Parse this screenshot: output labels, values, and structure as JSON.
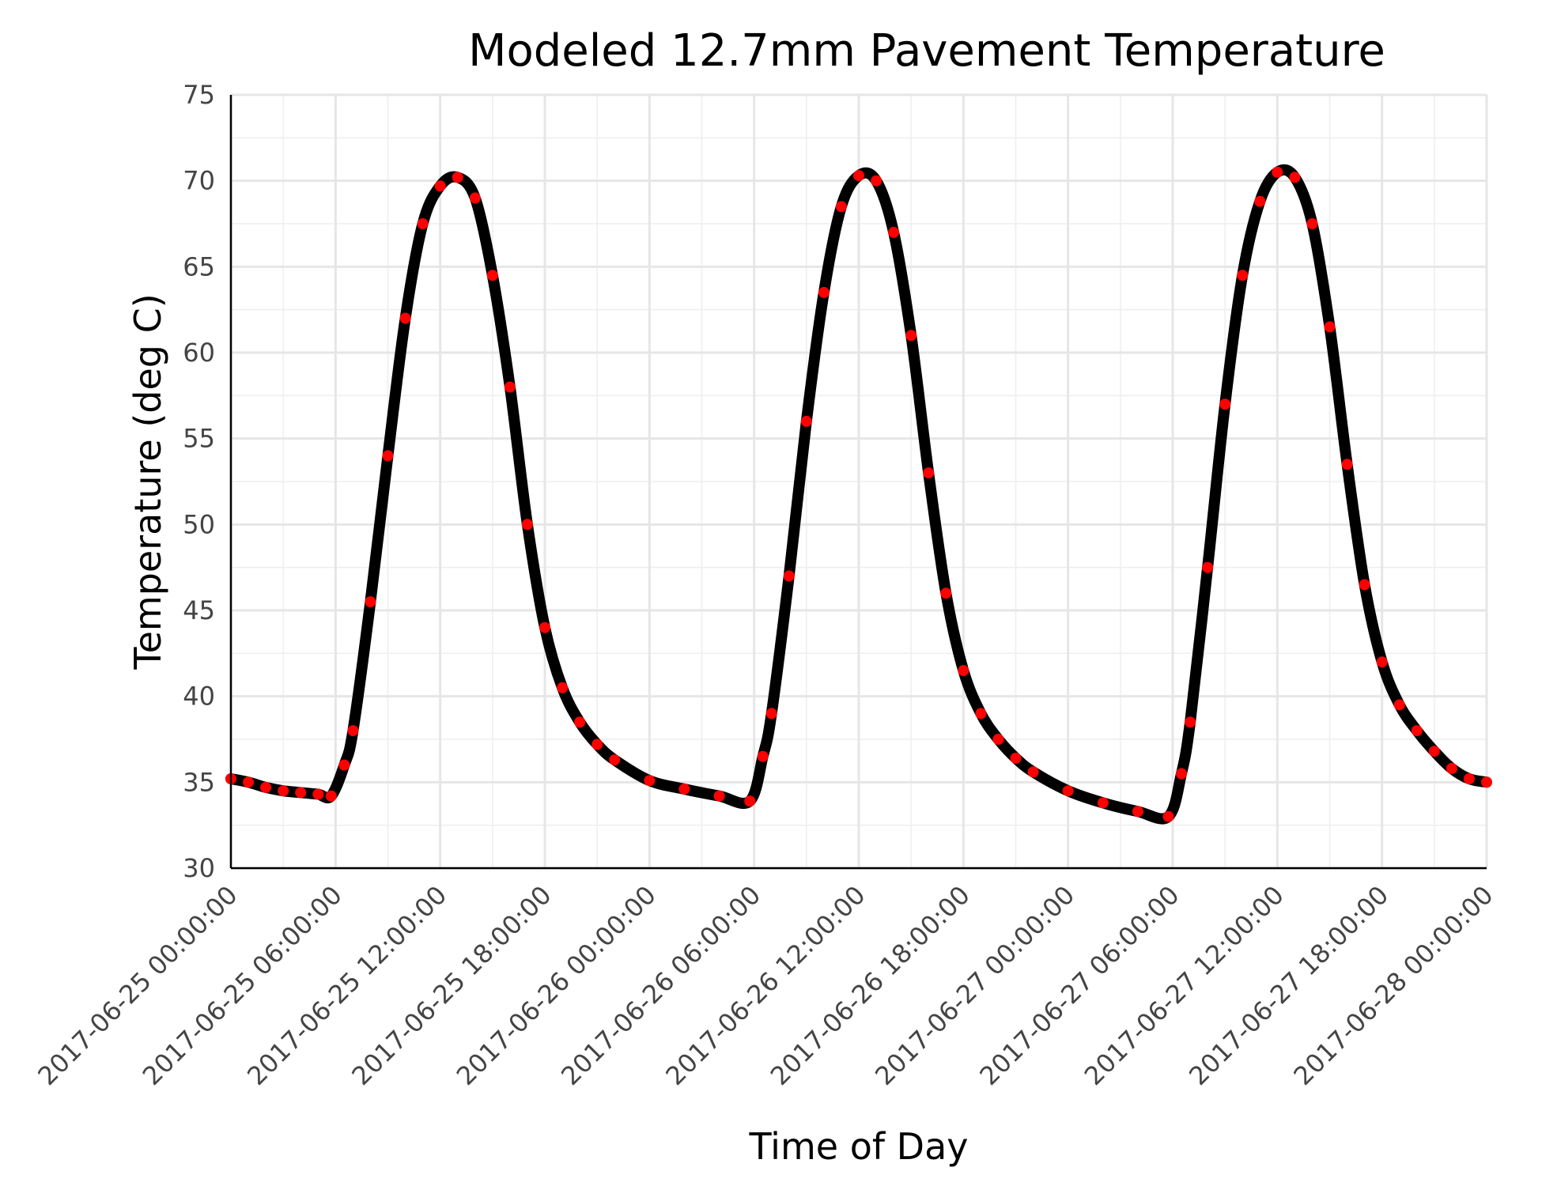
{
  "chart_data": {
    "type": "line",
    "title": "Modeled 12.7mm Pavement Temperature",
    "xlabel": "Time of Day",
    "ylabel": "Temperature (deg C)",
    "xlim": [
      "2017-06-25 00:00:00",
      "2017-06-28 00:00:00"
    ],
    "ylim": [
      30,
      75
    ],
    "yticks": [
      30,
      35,
      40,
      45,
      50,
      55,
      60,
      65,
      70,
      75
    ],
    "xticks": [
      "2017-06-25 00:00:00",
      "2017-06-25 06:00:00",
      "2017-06-25 12:00:00",
      "2017-06-25 18:00:00",
      "2017-06-26 00:00:00",
      "2017-06-26 06:00:00",
      "2017-06-26 12:00:00",
      "2017-06-26 18:00:00",
      "2017-06-27 00:00:00",
      "2017-06-27 06:00:00",
      "2017-06-27 12:00:00",
      "2017-06-27 18:00:00",
      "2017-06-28 00:00:00"
    ],
    "grid": true,
    "legend": false,
    "series": [
      {
        "style": "line",
        "color": "#000000",
        "x": [
          "2017-06-25 00:00:00",
          "2017-06-25 01:00:00",
          "2017-06-25 02:00:00",
          "2017-06-25 03:00:00",
          "2017-06-25 04:00:00",
          "2017-06-25 05:00:00",
          "2017-06-25 05:45:00",
          "2017-06-25 06:30:00",
          "2017-06-25 07:00:00",
          "2017-06-25 08:00:00",
          "2017-06-25 09:00:00",
          "2017-06-25 10:00:00",
          "2017-06-25 11:00:00",
          "2017-06-25 12:00:00",
          "2017-06-25 13:00:00",
          "2017-06-25 14:00:00",
          "2017-06-25 15:00:00",
          "2017-06-25 16:00:00",
          "2017-06-25 17:00:00",
          "2017-06-25 18:00:00",
          "2017-06-25 19:00:00",
          "2017-06-25 20:00:00",
          "2017-06-25 21:00:00",
          "2017-06-25 22:00:00",
          "2017-06-26 00:00:00",
          "2017-06-26 02:00:00",
          "2017-06-26 04:00:00",
          "2017-06-26 05:45:00",
          "2017-06-26 06:30:00",
          "2017-06-26 07:00:00",
          "2017-06-26 08:00:00",
          "2017-06-26 09:00:00",
          "2017-06-26 10:00:00",
          "2017-06-26 11:00:00",
          "2017-06-26 12:00:00",
          "2017-06-26 13:00:00",
          "2017-06-26 14:00:00",
          "2017-06-26 15:00:00",
          "2017-06-26 16:00:00",
          "2017-06-26 17:00:00",
          "2017-06-26 18:00:00",
          "2017-06-26 19:00:00",
          "2017-06-26 20:00:00",
          "2017-06-26 21:00:00",
          "2017-06-26 22:00:00",
          "2017-06-27 00:00:00",
          "2017-06-27 02:00:00",
          "2017-06-27 04:00:00",
          "2017-06-27 05:45:00",
          "2017-06-27 06:30:00",
          "2017-06-27 07:00:00",
          "2017-06-27 08:00:00",
          "2017-06-27 09:00:00",
          "2017-06-27 10:00:00",
          "2017-06-27 11:00:00",
          "2017-06-27 12:00:00",
          "2017-06-27 13:00:00",
          "2017-06-27 14:00:00",
          "2017-06-27 15:00:00",
          "2017-06-27 16:00:00",
          "2017-06-27 17:00:00",
          "2017-06-27 18:00:00",
          "2017-06-27 19:00:00",
          "2017-06-27 20:00:00",
          "2017-06-27 21:00:00",
          "2017-06-27 22:00:00",
          "2017-06-27 23:00:00",
          "2017-06-28 00:00:00"
        ],
        "y": [
          35.2,
          35.0,
          34.7,
          34.5,
          34.4,
          34.3,
          34.2,
          36.0,
          38.0,
          45.5,
          54.0,
          62.0,
          67.5,
          69.7,
          70.2,
          69.0,
          64.5,
          58.0,
          50.0,
          44.0,
          40.5,
          38.5,
          37.2,
          36.3,
          35.1,
          34.6,
          34.2,
          33.9,
          36.5,
          39.0,
          47.0,
          56.0,
          63.5,
          68.5,
          70.3,
          70.0,
          67.0,
          61.0,
          53.0,
          46.0,
          41.5,
          39.0,
          37.5,
          36.4,
          35.6,
          34.5,
          33.8,
          33.3,
          33.0,
          35.5,
          38.5,
          47.5,
          57.0,
          64.5,
          68.8,
          70.5,
          70.2,
          67.5,
          61.5,
          53.5,
          46.5,
          42.0,
          39.5,
          38.0,
          36.8,
          35.8,
          35.2,
          35.0
        ]
      },
      {
        "style": "markers",
        "color": "#ff0000",
        "x": [
          "2017-06-25 00:00:00",
          "2017-06-25 01:00:00",
          "2017-06-25 02:00:00",
          "2017-06-25 03:00:00",
          "2017-06-25 04:00:00",
          "2017-06-25 05:00:00",
          "2017-06-25 05:45:00",
          "2017-06-25 06:30:00",
          "2017-06-25 07:00:00",
          "2017-06-25 08:00:00",
          "2017-06-25 09:00:00",
          "2017-06-25 10:00:00",
          "2017-06-25 11:00:00",
          "2017-06-25 12:00:00",
          "2017-06-25 13:00:00",
          "2017-06-25 14:00:00",
          "2017-06-25 15:00:00",
          "2017-06-25 16:00:00",
          "2017-06-25 17:00:00",
          "2017-06-25 18:00:00",
          "2017-06-25 19:00:00",
          "2017-06-25 20:00:00",
          "2017-06-25 21:00:00",
          "2017-06-25 22:00:00",
          "2017-06-26 00:00:00",
          "2017-06-26 02:00:00",
          "2017-06-26 04:00:00",
          "2017-06-26 05:45:00",
          "2017-06-26 06:30:00",
          "2017-06-26 07:00:00",
          "2017-06-26 08:00:00",
          "2017-06-26 09:00:00",
          "2017-06-26 10:00:00",
          "2017-06-26 11:00:00",
          "2017-06-26 12:00:00",
          "2017-06-26 13:00:00",
          "2017-06-26 14:00:00",
          "2017-06-26 15:00:00",
          "2017-06-26 16:00:00",
          "2017-06-26 17:00:00",
          "2017-06-26 18:00:00",
          "2017-06-26 19:00:00",
          "2017-06-26 20:00:00",
          "2017-06-26 21:00:00",
          "2017-06-26 22:00:00",
          "2017-06-27 00:00:00",
          "2017-06-27 02:00:00",
          "2017-06-27 04:00:00",
          "2017-06-27 05:45:00",
          "2017-06-27 06:30:00",
          "2017-06-27 07:00:00",
          "2017-06-27 08:00:00",
          "2017-06-27 09:00:00",
          "2017-06-27 10:00:00",
          "2017-06-27 11:00:00",
          "2017-06-27 12:00:00",
          "2017-06-27 13:00:00",
          "2017-06-27 14:00:00",
          "2017-06-27 15:00:00",
          "2017-06-27 16:00:00",
          "2017-06-27 17:00:00",
          "2017-06-27 18:00:00",
          "2017-06-27 19:00:00",
          "2017-06-27 20:00:00",
          "2017-06-27 21:00:00",
          "2017-06-27 22:00:00",
          "2017-06-27 23:00:00",
          "2017-06-28 00:00:00"
        ],
        "y": [
          35.2,
          35.0,
          34.7,
          34.5,
          34.4,
          34.3,
          34.2,
          36.0,
          38.0,
          45.5,
          54.0,
          62.0,
          67.5,
          69.7,
          70.2,
          69.0,
          64.5,
          58.0,
          50.0,
          44.0,
          40.5,
          38.5,
          37.2,
          36.3,
          35.1,
          34.6,
          34.2,
          33.9,
          36.5,
          39.0,
          47.0,
          56.0,
          63.5,
          68.5,
          70.3,
          70.0,
          67.0,
          61.0,
          53.0,
          46.0,
          41.5,
          39.0,
          37.5,
          36.4,
          35.6,
          34.5,
          33.8,
          33.3,
          33.0,
          35.5,
          38.5,
          47.5,
          57.0,
          64.5,
          68.8,
          70.5,
          70.2,
          67.5,
          61.5,
          53.5,
          46.5,
          42.0,
          39.5,
          38.0,
          36.8,
          35.8,
          35.2,
          35.0
        ]
      }
    ]
  }
}
